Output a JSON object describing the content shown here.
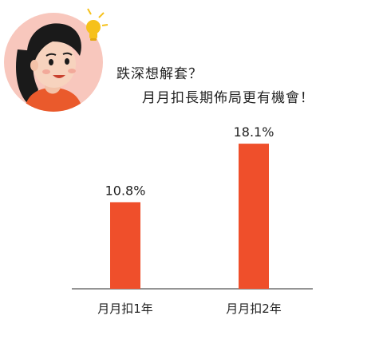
{
  "header": {
    "line1": "跌深想解套？",
    "line2": "月月扣長期佈局更有機會！"
  },
  "illustration": {
    "character": "woman-avatar",
    "icon": "lightbulb-icon"
  },
  "colors": {
    "bar": "#EF4F2B",
    "avatar_background": "#F8C7BD",
    "shirt": "#EA5A2C",
    "hair": "#1A1A1A",
    "lightbulb": "#F6C11B",
    "axis": "#555555",
    "text": "#222222"
  },
  "chart_data": {
    "type": "bar",
    "categories": [
      "月月扣1年",
      "月月扣2年"
    ],
    "values": [
      10.8,
      18.1
    ],
    "data_labels": [
      "10.8%",
      "18.1%"
    ],
    "unit": "%",
    "ylim": [
      0,
      20
    ],
    "grid": false,
    "legend": "none"
  }
}
